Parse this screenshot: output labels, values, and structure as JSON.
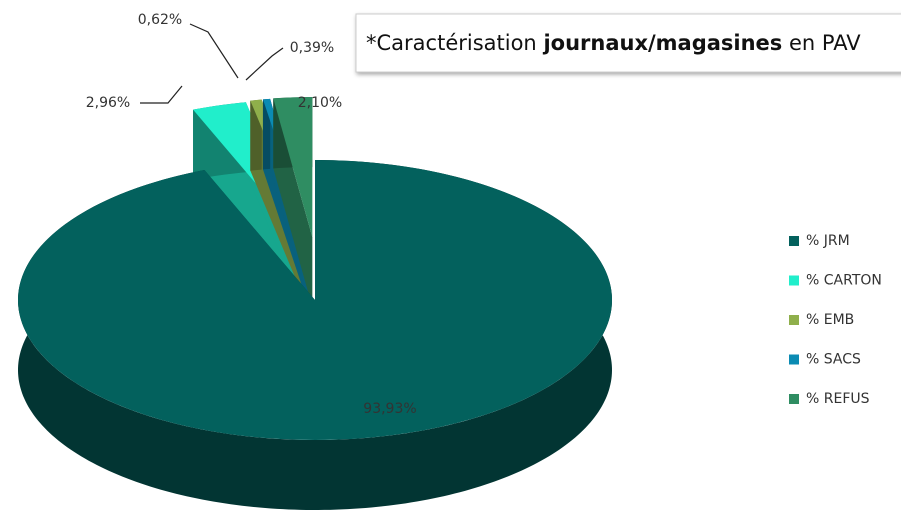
{
  "chart_data": {
    "type": "pie3d",
    "title": {
      "prefix": "*Caractérisation",
      "bold": "journaux/magasines",
      "suffix": "en PAV"
    },
    "categories": [
      "% JRM",
      "% CARTON",
      "% EMB",
      "% SACS",
      "% REFUS"
    ],
    "values": [
      93.93,
      2.96,
      0.62,
      0.39,
      2.1
    ],
    "value_labels": [
      "93,93%",
      "2,96%",
      "0,62%",
      "0,39%",
      "2,10%"
    ],
    "colors": [
      "#03615d",
      "#21eecb",
      "#8faf4b",
      "#0b8bb3",
      "#2f8d62"
    ],
    "legend": "right"
  }
}
